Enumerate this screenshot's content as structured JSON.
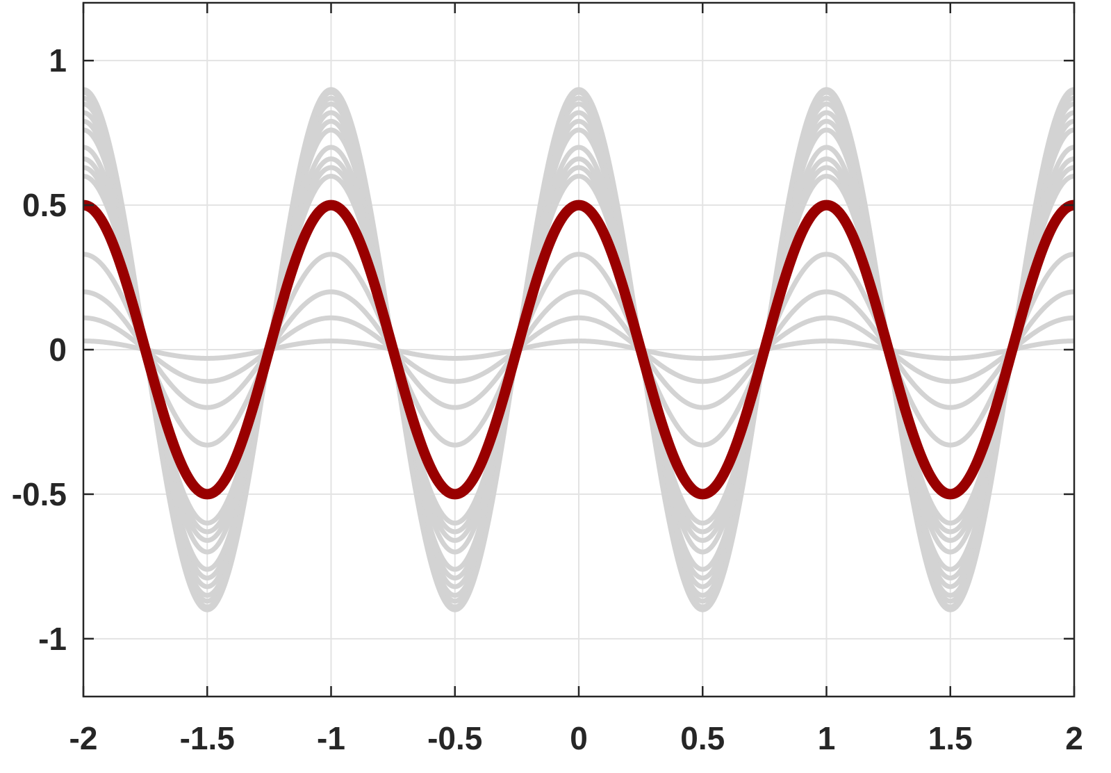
{
  "chart_data": {
    "type": "line",
    "title": "",
    "xlabel": "",
    "ylabel": "",
    "xlim": [
      -2,
      2
    ],
    "ylim": [
      -1.2,
      1.2
    ],
    "xticks": [
      -2,
      -1.5,
      -1,
      -0.5,
      0,
      0.5,
      1,
      1.5,
      2
    ],
    "yticks": [
      -1,
      -0.5,
      0,
      0.5,
      1
    ],
    "xtick_labels": [
      "-2",
      "-1.5",
      "-1",
      "-0.5",
      "0",
      "0.5",
      "1",
      "1.5",
      "2"
    ],
    "ytick_labels": [
      "-1",
      "-0.5",
      "0",
      "0.5",
      "1"
    ],
    "grid": true,
    "legend": "none",
    "function": "y = A * cos(2*pi*x)",
    "x": [
      -2,
      -1.75,
      -1.5,
      -1.25,
      -1,
      -0.75,
      -0.5,
      -0.25,
      0,
      0.25,
      0.5,
      0.75,
      1,
      1.25,
      1.5,
      1.75,
      2
    ],
    "series": [
      {
        "amplitude": 0.03,
        "color": "#d3d3d3",
        "highlight": false,
        "values": [
          0.03,
          0,
          -0.03,
          0,
          0.03,
          0,
          -0.03,
          0,
          0.03,
          0,
          -0.03,
          0,
          0.03,
          0,
          -0.03,
          0,
          0.03
        ]
      },
      {
        "amplitude": 0.11,
        "color": "#d3d3d3",
        "highlight": false,
        "values": [
          0.11,
          0,
          -0.11,
          0,
          0.11,
          0,
          -0.11,
          0,
          0.11,
          0,
          -0.11,
          0,
          0.11,
          0,
          -0.11,
          0,
          0.11
        ]
      },
      {
        "amplitude": 0.2,
        "color": "#d3d3d3",
        "highlight": false,
        "values": [
          0.2,
          0,
          -0.2,
          0,
          0.2,
          0,
          -0.2,
          0,
          0.2,
          0,
          -0.2,
          0,
          0.2,
          0,
          -0.2,
          0,
          0.2
        ]
      },
      {
        "amplitude": 0.33,
        "color": "#d3d3d3",
        "highlight": false,
        "values": [
          0.33,
          0,
          -0.33,
          0,
          0.33,
          0,
          -0.33,
          0,
          0.33,
          0,
          -0.33,
          0,
          0.33,
          0,
          -0.33,
          0,
          0.33
        ]
      },
      {
        "amplitude": 0.5,
        "color": "#d3d3d3",
        "highlight": false,
        "values": [
          0.5,
          0,
          -0.5,
          0,
          0.5,
          0,
          -0.5,
          0,
          0.5,
          0,
          -0.5,
          0,
          0.5,
          0,
          -0.5,
          0,
          0.5
        ]
      },
      {
        "amplitude": 0.6,
        "color": "#d3d3d3",
        "highlight": false,
        "values": [
          0.6,
          0,
          -0.6,
          0,
          0.6,
          0,
          -0.6,
          0,
          0.6,
          0,
          -0.6,
          0,
          0.6,
          0,
          -0.6,
          0,
          0.6
        ]
      },
      {
        "amplitude": 0.63,
        "color": "#d3d3d3",
        "highlight": false,
        "values": [
          0.63,
          0,
          -0.63,
          0,
          0.63,
          0,
          -0.63,
          0,
          0.63,
          0,
          -0.63,
          0,
          0.63,
          0,
          -0.63,
          0,
          0.63
        ]
      },
      {
        "amplitude": 0.66,
        "color": "#d3d3d3",
        "highlight": false,
        "values": [
          0.66,
          0,
          -0.66,
          0,
          0.66,
          0,
          -0.66,
          0,
          0.66,
          0,
          -0.66,
          0,
          0.66,
          0,
          -0.66,
          0,
          0.66
        ]
      },
      {
        "amplitude": 0.7,
        "color": "#d3d3d3",
        "highlight": false,
        "values": [
          0.7,
          0,
          -0.7,
          0,
          0.7,
          0,
          -0.7,
          0,
          0.7,
          0,
          -0.7,
          0,
          0.7,
          0,
          -0.7,
          0,
          0.7
        ]
      },
      {
        "amplitude": 0.76,
        "color": "#d3d3d3",
        "highlight": false,
        "values": [
          0.76,
          0,
          -0.76,
          0,
          0.76,
          0,
          -0.76,
          0,
          0.76,
          0,
          -0.76,
          0,
          0.76,
          0,
          -0.76,
          0,
          0.76
        ]
      },
      {
        "amplitude": 0.79,
        "color": "#d3d3d3",
        "highlight": false,
        "values": [
          0.79,
          0,
          -0.79,
          0,
          0.79,
          0,
          -0.79,
          0,
          0.79,
          0,
          -0.79,
          0,
          0.79,
          0,
          -0.79,
          0,
          0.79
        ]
      },
      {
        "amplitude": 0.82,
        "color": "#d3d3d3",
        "highlight": false,
        "values": [
          0.82,
          0,
          -0.82,
          0,
          0.82,
          0,
          -0.82,
          0,
          0.82,
          0,
          -0.82,
          0,
          0.82,
          0,
          -0.82,
          0,
          0.82
        ]
      },
      {
        "amplitude": 0.85,
        "color": "#d3d3d3",
        "highlight": false,
        "values": [
          0.85,
          0,
          -0.85,
          0,
          0.85,
          0,
          -0.85,
          0,
          0.85,
          0,
          -0.85,
          0,
          0.85,
          0,
          -0.85,
          0,
          0.85
        ]
      },
      {
        "amplitude": 0.87,
        "color": "#d3d3d3",
        "highlight": false,
        "values": [
          0.87,
          0,
          -0.87,
          0,
          0.87,
          0,
          -0.87,
          0,
          0.87,
          0,
          -0.87,
          0,
          0.87,
          0,
          -0.87,
          0,
          0.87
        ]
      },
      {
        "amplitude": 0.89,
        "color": "#d3d3d3",
        "highlight": false,
        "values": [
          0.89,
          0,
          -0.89,
          0,
          0.89,
          0,
          -0.89,
          0,
          0.89,
          0,
          -0.89,
          0,
          0.89,
          0,
          -0.89,
          0,
          0.89
        ]
      },
      {
        "amplitude": 0.9,
        "color": "#d3d3d3",
        "highlight": false,
        "values": [
          0.9,
          0,
          -0.9,
          0,
          0.9,
          0,
          -0.9,
          0,
          0.9,
          0,
          -0.9,
          0,
          0.9,
          0,
          -0.9,
          0,
          0.9
        ]
      },
      {
        "amplitude": 0.5,
        "color": "#990000",
        "highlight": true,
        "values": [
          0.5,
          0,
          -0.5,
          0,
          0.5,
          0,
          -0.5,
          0,
          0.5,
          0,
          -0.5,
          0,
          0.5,
          0,
          -0.5,
          0,
          0.5
        ]
      }
    ]
  }
}
